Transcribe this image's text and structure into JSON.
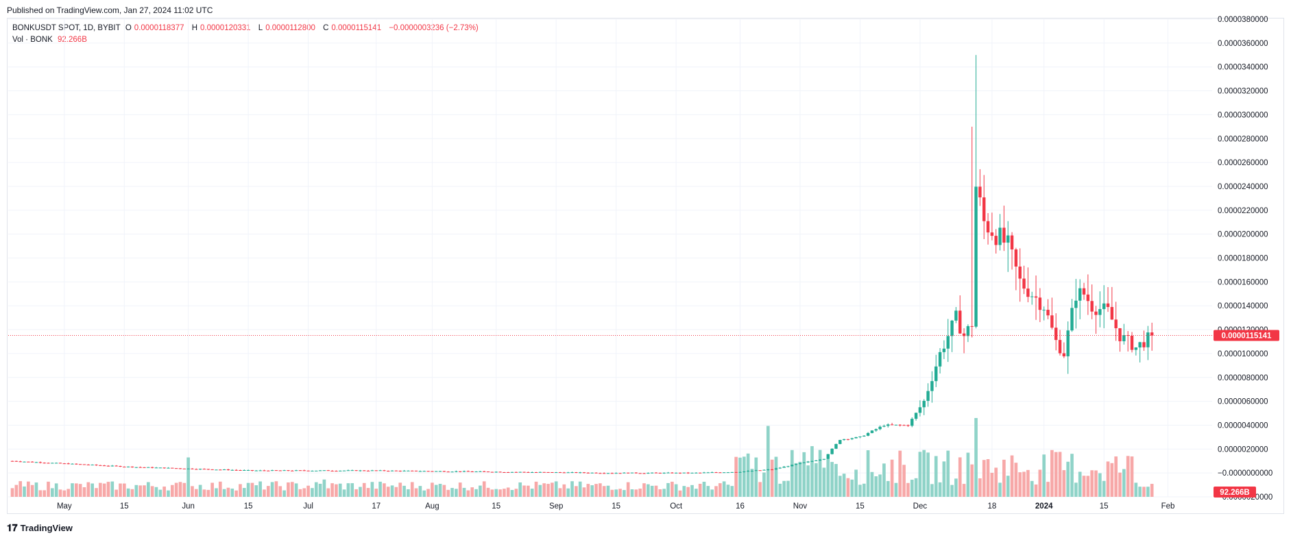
{
  "header": {
    "published": "Published on TradingView.com, Jan 27, 2024 11:02 UTC"
  },
  "legend": {
    "symbol": "BONKUSDT SPOT, 1D, BYBIT",
    "o_label": "O",
    "o_value": "0.0000118377",
    "h_label": "H",
    "h_value": "0.0000120331",
    "l_label": "L",
    "l_value": "0.0000112800",
    "c_label": "C",
    "c_value": "0.0000115141",
    "change": "−0.0000003236 (−2.73%)",
    "vol_label": "Vol · BONK",
    "vol_value": "92.266B"
  },
  "footer": {
    "brand": "TradingView",
    "logo_icon": "tradingview-logo-icon"
  },
  "colors": {
    "up": "#22ab94",
    "down": "#f23645",
    "vol_up": "#8fd3c8",
    "vol_down": "#f7a8a8",
    "grid": "#f0f3fa"
  },
  "chart_data": {
    "type": "candlestick",
    "ylim": [
      -2e-06,
      3.8e-05
    ],
    "y_ticks": [
      "0.0000380000",
      "0.0000360000",
      "0.0000340000",
      "0.0000320000",
      "0.0000300000",
      "0.0000280000",
      "0.0000260000",
      "0.0000240000",
      "0.0000220000",
      "0.0000200000",
      "0.0000180000",
      "0.0000160000",
      "0.0000140000",
      "0.0000120000",
      "0.0000100000",
      "0.0000080000",
      "0.0000060000",
      "0.0000040000",
      "0.0000020000",
      "−0.0000000000",
      "−0.0000020000"
    ],
    "y_tick_values": [
      3.8e-05,
      3.6e-05,
      3.4e-05,
      3.2e-05,
      3e-05,
      2.8e-05,
      2.6e-05,
      2.4e-05,
      2.2e-05,
      2e-05,
      1.8e-05,
      1.6e-05,
      1.4e-05,
      1.2e-05,
      1e-05,
      8e-06,
      6e-06,
      4e-06,
      2e-06,
      0.0,
      -2e-06
    ],
    "x_ticks": [
      "May",
      "15",
      "Jun",
      "15",
      "Jul",
      "17",
      "Aug",
      "15",
      "Sep",
      "15",
      "Oct",
      "16",
      "Nov",
      "15",
      "Dec",
      "18",
      "2024",
      "15",
      "Feb"
    ],
    "x_tick_days": [
      13,
      28,
      44,
      59,
      74,
      91,
      105,
      121,
      136,
      151,
      166,
      182,
      197,
      212,
      227,
      245,
      258,
      273,
      289
    ],
    "last_price": 1.15141e-05,
    "last_price_label": "0.0000115141",
    "last_volume_label": "92.266B",
    "anchors_close": [
      [
        0,
        1e-06
      ],
      [
        30,
        5e-07
      ],
      [
        60,
        2e-07
      ],
      [
        90,
        2e-07
      ],
      [
        120,
        1e-07
      ],
      [
        150,
        0.0
      ],
      [
        170,
        0.0
      ],
      [
        182,
        1e-07
      ],
      [
        190,
        3e-07
      ],
      [
        197,
        8e-07
      ],
      [
        203,
        1.2e-06
      ],
      [
        207,
        2.8e-06
      ],
      [
        212,
        3e-06
      ],
      [
        218,
        4e-06
      ],
      [
        224,
        4e-06
      ],
      [
        228,
        6e-06
      ],
      [
        232,
        1e-05
      ],
      [
        236,
        1.3e-05
      ],
      [
        238,
        1.15e-05
      ],
      [
        240,
        1.25e-05
      ],
      [
        241,
        2.4e-05
      ],
      [
        243,
        2.1e-05
      ],
      [
        246,
        2e-05
      ],
      [
        249,
        1.9e-05
      ],
      [
        252,
        1.6e-05
      ],
      [
        255,
        1.5e-05
      ],
      [
        258,
        1.4e-05
      ],
      [
        261,
        1.1e-05
      ],
      [
        263,
        1e-05
      ],
      [
        266,
        1.5e-05
      ],
      [
        268,
        1.5e-05
      ],
      [
        270,
        1.4e-05
      ],
      [
        274,
        1.35e-05
      ],
      [
        277,
        1.15e-05
      ],
      [
        281,
        1.05e-05
      ],
      [
        283,
        1.1e-05
      ],
      [
        285,
        1.15e-05
      ]
    ],
    "vol_days_in_range": 286
  }
}
